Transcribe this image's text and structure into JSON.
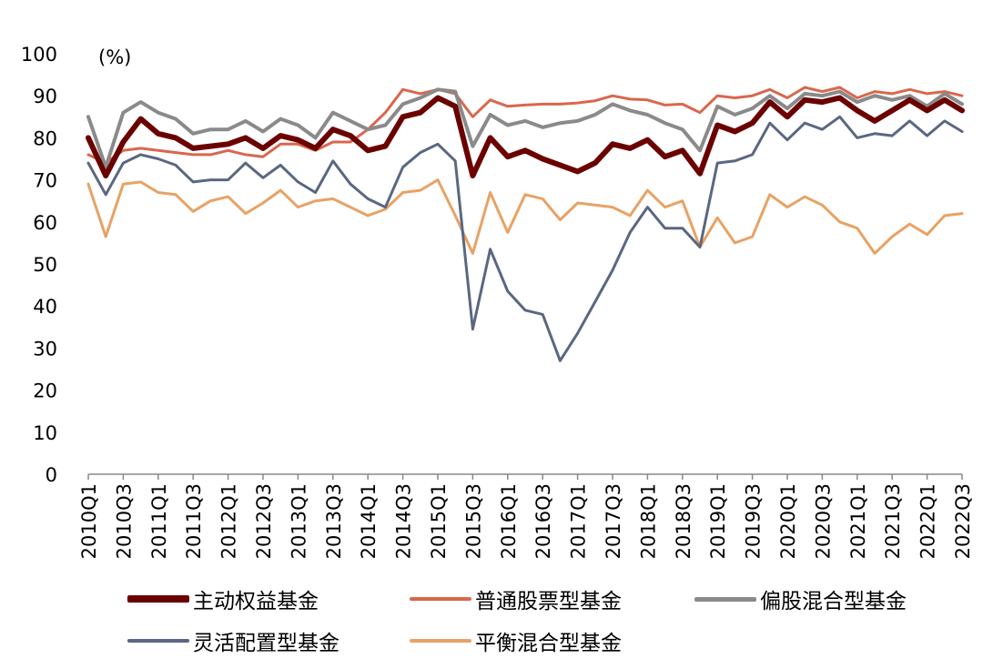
{
  "chart_data": {
    "type": "line",
    "unit_label": "(%)",
    "ylim": [
      0,
      100
    ],
    "yticks": [
      0,
      10,
      20,
      30,
      40,
      50,
      60,
      70,
      80,
      90,
      100
    ],
    "grid": false,
    "legend_position": "bottom",
    "x": [
      "2010Q1",
      "2010Q2",
      "2010Q3",
      "2010Q4",
      "2011Q1",
      "2011Q2",
      "2011Q3",
      "2011Q4",
      "2012Q1",
      "2012Q2",
      "2012Q3",
      "2012Q4",
      "2013Q1",
      "2013Q2",
      "2013Q3",
      "2013Q4",
      "2014Q1",
      "2014Q2",
      "2014Q3",
      "2014Q4",
      "2015Q1",
      "2015Q2",
      "2015Q3",
      "2015Q4",
      "2016Q1",
      "2016Q2",
      "2016Q3",
      "2016Q4",
      "2017Q1",
      "2017Q2",
      "2017Q3",
      "2017Q4",
      "2018Q1",
      "2018Q2",
      "2018Q3",
      "2018Q4",
      "2019Q1",
      "2019Q2",
      "2019Q3",
      "2019Q4",
      "2020Q1",
      "2020Q2",
      "2020Q3",
      "2020Q4",
      "2021Q1",
      "2021Q2",
      "2021Q3",
      "2021Q4",
      "2022Q1",
      "2022Q2",
      "2022Q3"
    ],
    "xticks_shown": [
      "2010Q1",
      "2010Q3",
      "2011Q1",
      "2011Q3",
      "2012Q1",
      "2012Q3",
      "2013Q1",
      "2013Q3",
      "2014Q1",
      "2014Q3",
      "2015Q1",
      "2015Q3",
      "2016Q1",
      "2016Q3",
      "2017Q1",
      "2017Q3",
      "2018Q1",
      "2018Q3",
      "2019Q1",
      "2019Q3",
      "2020Q1",
      "2020Q3",
      "2021Q1",
      "2021Q3",
      "2022Q1",
      "2022Q3"
    ],
    "series": [
      {
        "name": "主动权益基金",
        "color": "#6b0000",
        "width": 6,
        "values": [
          80,
          71,
          79,
          84.5,
          81,
          80,
          77.5,
          78,
          78.5,
          80,
          77.5,
          80.5,
          79.5,
          77.5,
          82,
          80.5,
          77,
          78,
          85,
          86,
          89.5,
          87.5,
          71,
          80,
          75.5,
          77,
          75,
          73.5,
          72,
          74,
          78.5,
          77.5,
          79.5,
          75.5,
          77,
          71.5,
          83,
          81.5,
          83.5,
          88.5,
          85,
          89,
          88.5,
          89.5,
          86.5,
          84,
          86.5,
          89,
          86.5,
          89,
          86.5
        ]
      },
      {
        "name": "普通股票型基金",
        "color": "#d9674d",
        "width": 3,
        "values": [
          76,
          74,
          77,
          77.5,
          77,
          76.5,
          76,
          76,
          77,
          76,
          75.5,
          78.5,
          78.5,
          77,
          79,
          79,
          82,
          86,
          91.5,
          90.5,
          91.5,
          90.5,
          85,
          89,
          87.5,
          87.8,
          88,
          88,
          88.3,
          88.8,
          90,
          89.2,
          89,
          87.8,
          88,
          86,
          90,
          89.5,
          90,
          91.5,
          89.5,
          92,
          91,
          92,
          89.5,
          91,
          90.5,
          91.5,
          90.5,
          91,
          90
        ]
      },
      {
        "name": "偏股混合型基金",
        "color": "#8a8a8a",
        "width": 4,
        "values": [
          85,
          73,
          86,
          88.5,
          86,
          84.5,
          81,
          82,
          82,
          84,
          81.5,
          84.5,
          83,
          80,
          86,
          84,
          82,
          83,
          88,
          89.5,
          91.5,
          91,
          78,
          85.5,
          83,
          84,
          82.5,
          83.5,
          84,
          85.5,
          88,
          86.5,
          85.5,
          83.5,
          82,
          77,
          87.5,
          85.5,
          87,
          90,
          87,
          90.5,
          90,
          91,
          88.5,
          90,
          89,
          90,
          87.5,
          90.5,
          88
        ]
      },
      {
        "name": "灵活配置型基金",
        "color": "#5a6781",
        "width": 3,
        "values": [
          74,
          66.5,
          74,
          76,
          75,
          73.5,
          69.5,
          70,
          70,
          74,
          70.5,
          73.5,
          69.5,
          67,
          74.5,
          69,
          65.5,
          63.5,
          73,
          76.5,
          78.5,
          74.5,
          34.5,
          53.5,
          43.5,
          39,
          38,
          27,
          33.5,
          41,
          48.5,
          57.5,
          63.5,
          58.5,
          58.5,
          54,
          74,
          74.5,
          76,
          83.5,
          79.5,
          83.5,
          82,
          85,
          80,
          81,
          80.5,
          84,
          80.5,
          84,
          81.5
        ]
      },
      {
        "name": "平衡混合型基金",
        "color": "#e8a264",
        "width": 3,
        "values": [
          69,
          56.5,
          69,
          69.5,
          67,
          66.5,
          62.5,
          65,
          66,
          62,
          64.5,
          67.5,
          63.5,
          65,
          65.5,
          63.5,
          61.5,
          63,
          67,
          67.5,
          70,
          61.5,
          52.5,
          67,
          57.5,
          66.5,
          65.5,
          60.5,
          64.5,
          64,
          63.5,
          61.5,
          67.5,
          63.5,
          65,
          54,
          61,
          55,
          56.5,
          66.5,
          63.5,
          66,
          64,
          60,
          58.5,
          52.5,
          56.5,
          59.5,
          57,
          61.5,
          62
        ]
      }
    ]
  }
}
